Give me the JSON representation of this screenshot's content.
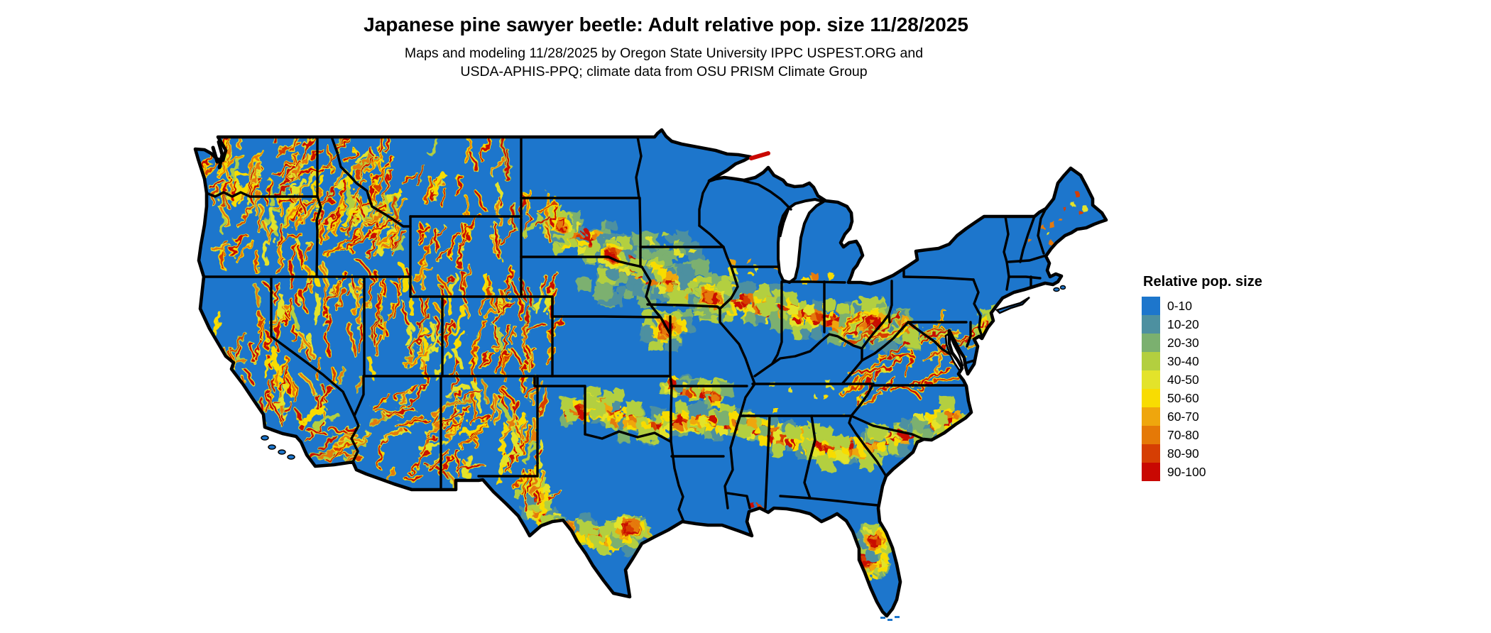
{
  "title": "Japanese pine sawyer beetle: Adult relative pop. size 11/28/2025",
  "subtitle": [
    "Maps and modeling 11/28/2025 by Oregon State University IPPC USPEST.ORG and",
    "USDA-APHIS-PPQ; climate data from OSU PRISM Climate Group"
  ],
  "legend": {
    "title": "Relative pop. size",
    "entries": [
      {
        "label": "0-10",
        "color": "#1D76CC"
      },
      {
        "label": "10-20",
        "color": "#4D90A0"
      },
      {
        "label": "20-30",
        "color": "#7BB06F"
      },
      {
        "label": "30-40",
        "color": "#B3CF3F"
      },
      {
        "label": "40-50",
        "color": "#E3E32A"
      },
      {
        "label": "50-60",
        "color": "#F8DC02"
      },
      {
        "label": "60-70",
        "color": "#EFA60D"
      },
      {
        "label": "70-80",
        "color": "#E57907"
      },
      {
        "label": "80-90",
        "color": "#D63E03"
      },
      {
        "label": "90-100",
        "color": "#C90802"
      }
    ]
  },
  "map": {
    "region": "Contiguous United States",
    "land_base_color": "#1D76CC",
    "border_color": "#000000",
    "water_color": "#FFFFFF"
  }
}
